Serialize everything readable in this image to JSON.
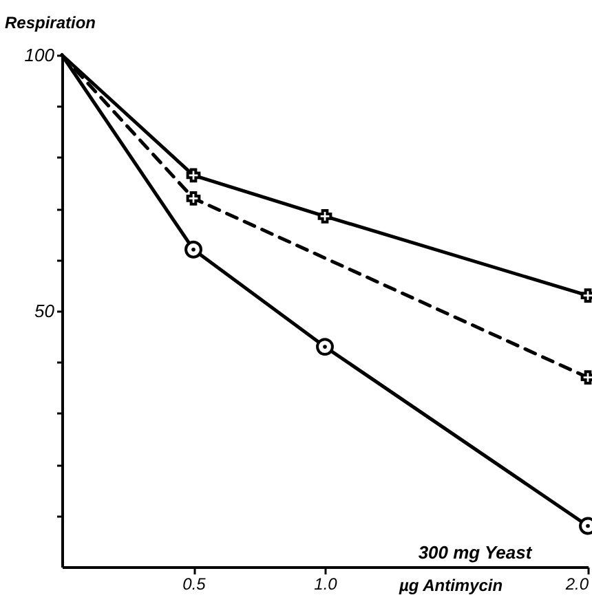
{
  "chart_data": {
    "type": "line",
    "xlabel": "µg Antimycin",
    "ylabel": "Respiration",
    "annotations": [
      "300 mg Yeast"
    ],
    "xlim": [
      0,
      2.0
    ],
    "xticks": [
      {
        "value": 0.5,
        "label": "0.5"
      },
      {
        "value": 1.0,
        "label": "1.0"
      },
      {
        "value": 2.0,
        "label": "2.0"
      }
    ],
    "ylim": [
      0,
      100
    ],
    "yticks": [
      {
        "value": 10,
        "label": null
      },
      {
        "value": 20,
        "label": null
      },
      {
        "value": 30,
        "label": null
      },
      {
        "value": 40,
        "label": null
      },
      50,
      {
        "value": 60,
        "label": null
      },
      {
        "value": 70,
        "label": null
      },
      {
        "value": 80,
        "label": null
      },
      {
        "value": 90,
        "label": null
      },
      100
    ],
    "grid": false,
    "series": [
      {
        "color": "#000000",
        "x": [
          0,
          0.5,
          1.0,
          2.0
        ],
        "values": [
          100,
          76.5,
          68.5,
          53
        ],
        "marker": "cross",
        "line_style": "solid"
      },
      {
        "color": "#000000",
        "x": [
          0,
          0.5,
          2.0
        ],
        "values": [
          100,
          72,
          37
        ],
        "marker": "cross",
        "line_style": "dashed"
      },
      {
        "color": "#000000",
        "x": [
          0,
          0.5,
          1.0,
          2.0
        ],
        "values": [
          100,
          62,
          43,
          8
        ],
        "marker": "circle",
        "line_style": "solid"
      }
    ]
  }
}
